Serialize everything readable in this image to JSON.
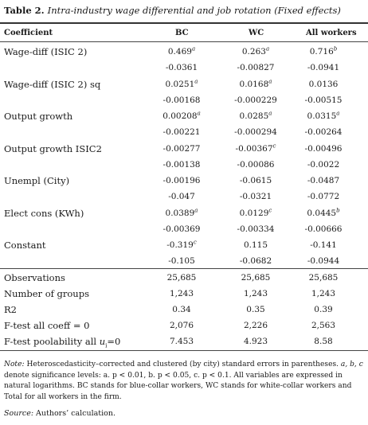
{
  "title": {
    "label": "Table 2.",
    "caption": "Intra-industry wage differential and job rotation (Fixed effects)"
  },
  "columns": {
    "coefficient": "Coefficient",
    "bc": "BC",
    "wc": "WC",
    "all": "All workers"
  },
  "coefficients": [
    {
      "name": "Wage-diff (ISIC 2)",
      "bc": {
        "v": "0.469",
        "sig": "a"
      },
      "wc": {
        "v": "0.263",
        "sig": "a"
      },
      "all": {
        "v": "0.716",
        "sig": "b"
      },
      "se": {
        "bc": "-0.0361",
        "wc": "-0.00827",
        "all": "-0.0941"
      }
    },
    {
      "name": "Wage-diff (ISIC 2) sq",
      "bc": {
        "v": "0.0251",
        "sig": "a"
      },
      "wc": {
        "v": "0.0168",
        "sig": "a"
      },
      "all": {
        "v": "0.0136",
        "sig": ""
      },
      "se": {
        "bc": "-0.00168",
        "wc": "-0.000229",
        "all": "-0.00515"
      }
    },
    {
      "name": "Output growth",
      "bc": {
        "v": "0.00208",
        "sig": "a"
      },
      "wc": {
        "v": "0.0285",
        "sig": "a"
      },
      "all": {
        "v": "0.0315",
        "sig": "a"
      },
      "se": {
        "bc": "-0.00221",
        "wc": "-0.000294",
        "all": "-0.00264"
      }
    },
    {
      "name": "Output growth ISIC2",
      "bc": {
        "v": "-0.00277",
        "sig": ""
      },
      "wc": {
        "v": "-0.00367",
        "sig": "c"
      },
      "all": {
        "v": "-0.00496",
        "sig": ""
      },
      "se": {
        "bc": "-0.00138",
        "wc": "-0.00086",
        "all": "-0.0022"
      }
    },
    {
      "name": "Unempl (City)",
      "bc": {
        "v": "-0.00196",
        "sig": ""
      },
      "wc": {
        "v": "-0.0615",
        "sig": ""
      },
      "all": {
        "v": "-0.0487",
        "sig": ""
      },
      "se": {
        "bc": "-0.047",
        "wc": "-0.0321",
        "all": "-0.0772"
      }
    },
    {
      "name": "Elect cons (KWh)",
      "bc": {
        "v": "0.0389",
        "sig": "a"
      },
      "wc": {
        "v": "0.0129",
        "sig": "c"
      },
      "all": {
        "v": "0.0445",
        "sig": "b"
      },
      "se": {
        "bc": "-0.00369",
        "wc": "-0.00334",
        "all": "-0.00666"
      }
    },
    {
      "name": "Constant",
      "bc": {
        "v": "-0.319",
        "sig": "c"
      },
      "wc": {
        "v": "0.115",
        "sig": ""
      },
      "all": {
        "v": "-0.141",
        "sig": ""
      },
      "se": {
        "bc": "-0.105",
        "wc": "-0.0682",
        "all": "-0.0944"
      }
    }
  ],
  "stats": [
    {
      "name": "Observations",
      "bc": "25,685",
      "wc": "25,685",
      "all": "25,685"
    },
    {
      "name": "Number of groups",
      "bc": "1,243",
      "wc": "1,243",
      "all": "1,243"
    },
    {
      "name": "R2",
      "bc": "0.34",
      "wc": "0.35",
      "all": "0.39"
    },
    {
      "name": "F-test all coeff = 0",
      "bc": "2,076",
      "wc": "2,226",
      "all": "2,563"
    },
    {
      "name_prefix": "F-test poolability all ",
      "name_var": "u",
      "name_sub": "i",
      "name_suffix": "=0",
      "bc": "7.453",
      "wc": "4.923",
      "all": "8.58"
    }
  ],
  "note": {
    "label": "Note:",
    "text": " Heteroscedasticity–corrected and clustered (by city) standard errors in parentheses. ",
    "sig_letters": "a, b, c",
    "text2": " denote significance levels: a. p < 0.01, b. p < 0.05, c. p < 0.1. All variables are expressed in natural logarithms. BC stands for blue-collar workers, WC stands for white-collar workers and Total for all workers in the firm."
  },
  "source": {
    "label": "Source:",
    "text": " Authors’ calculation."
  }
}
